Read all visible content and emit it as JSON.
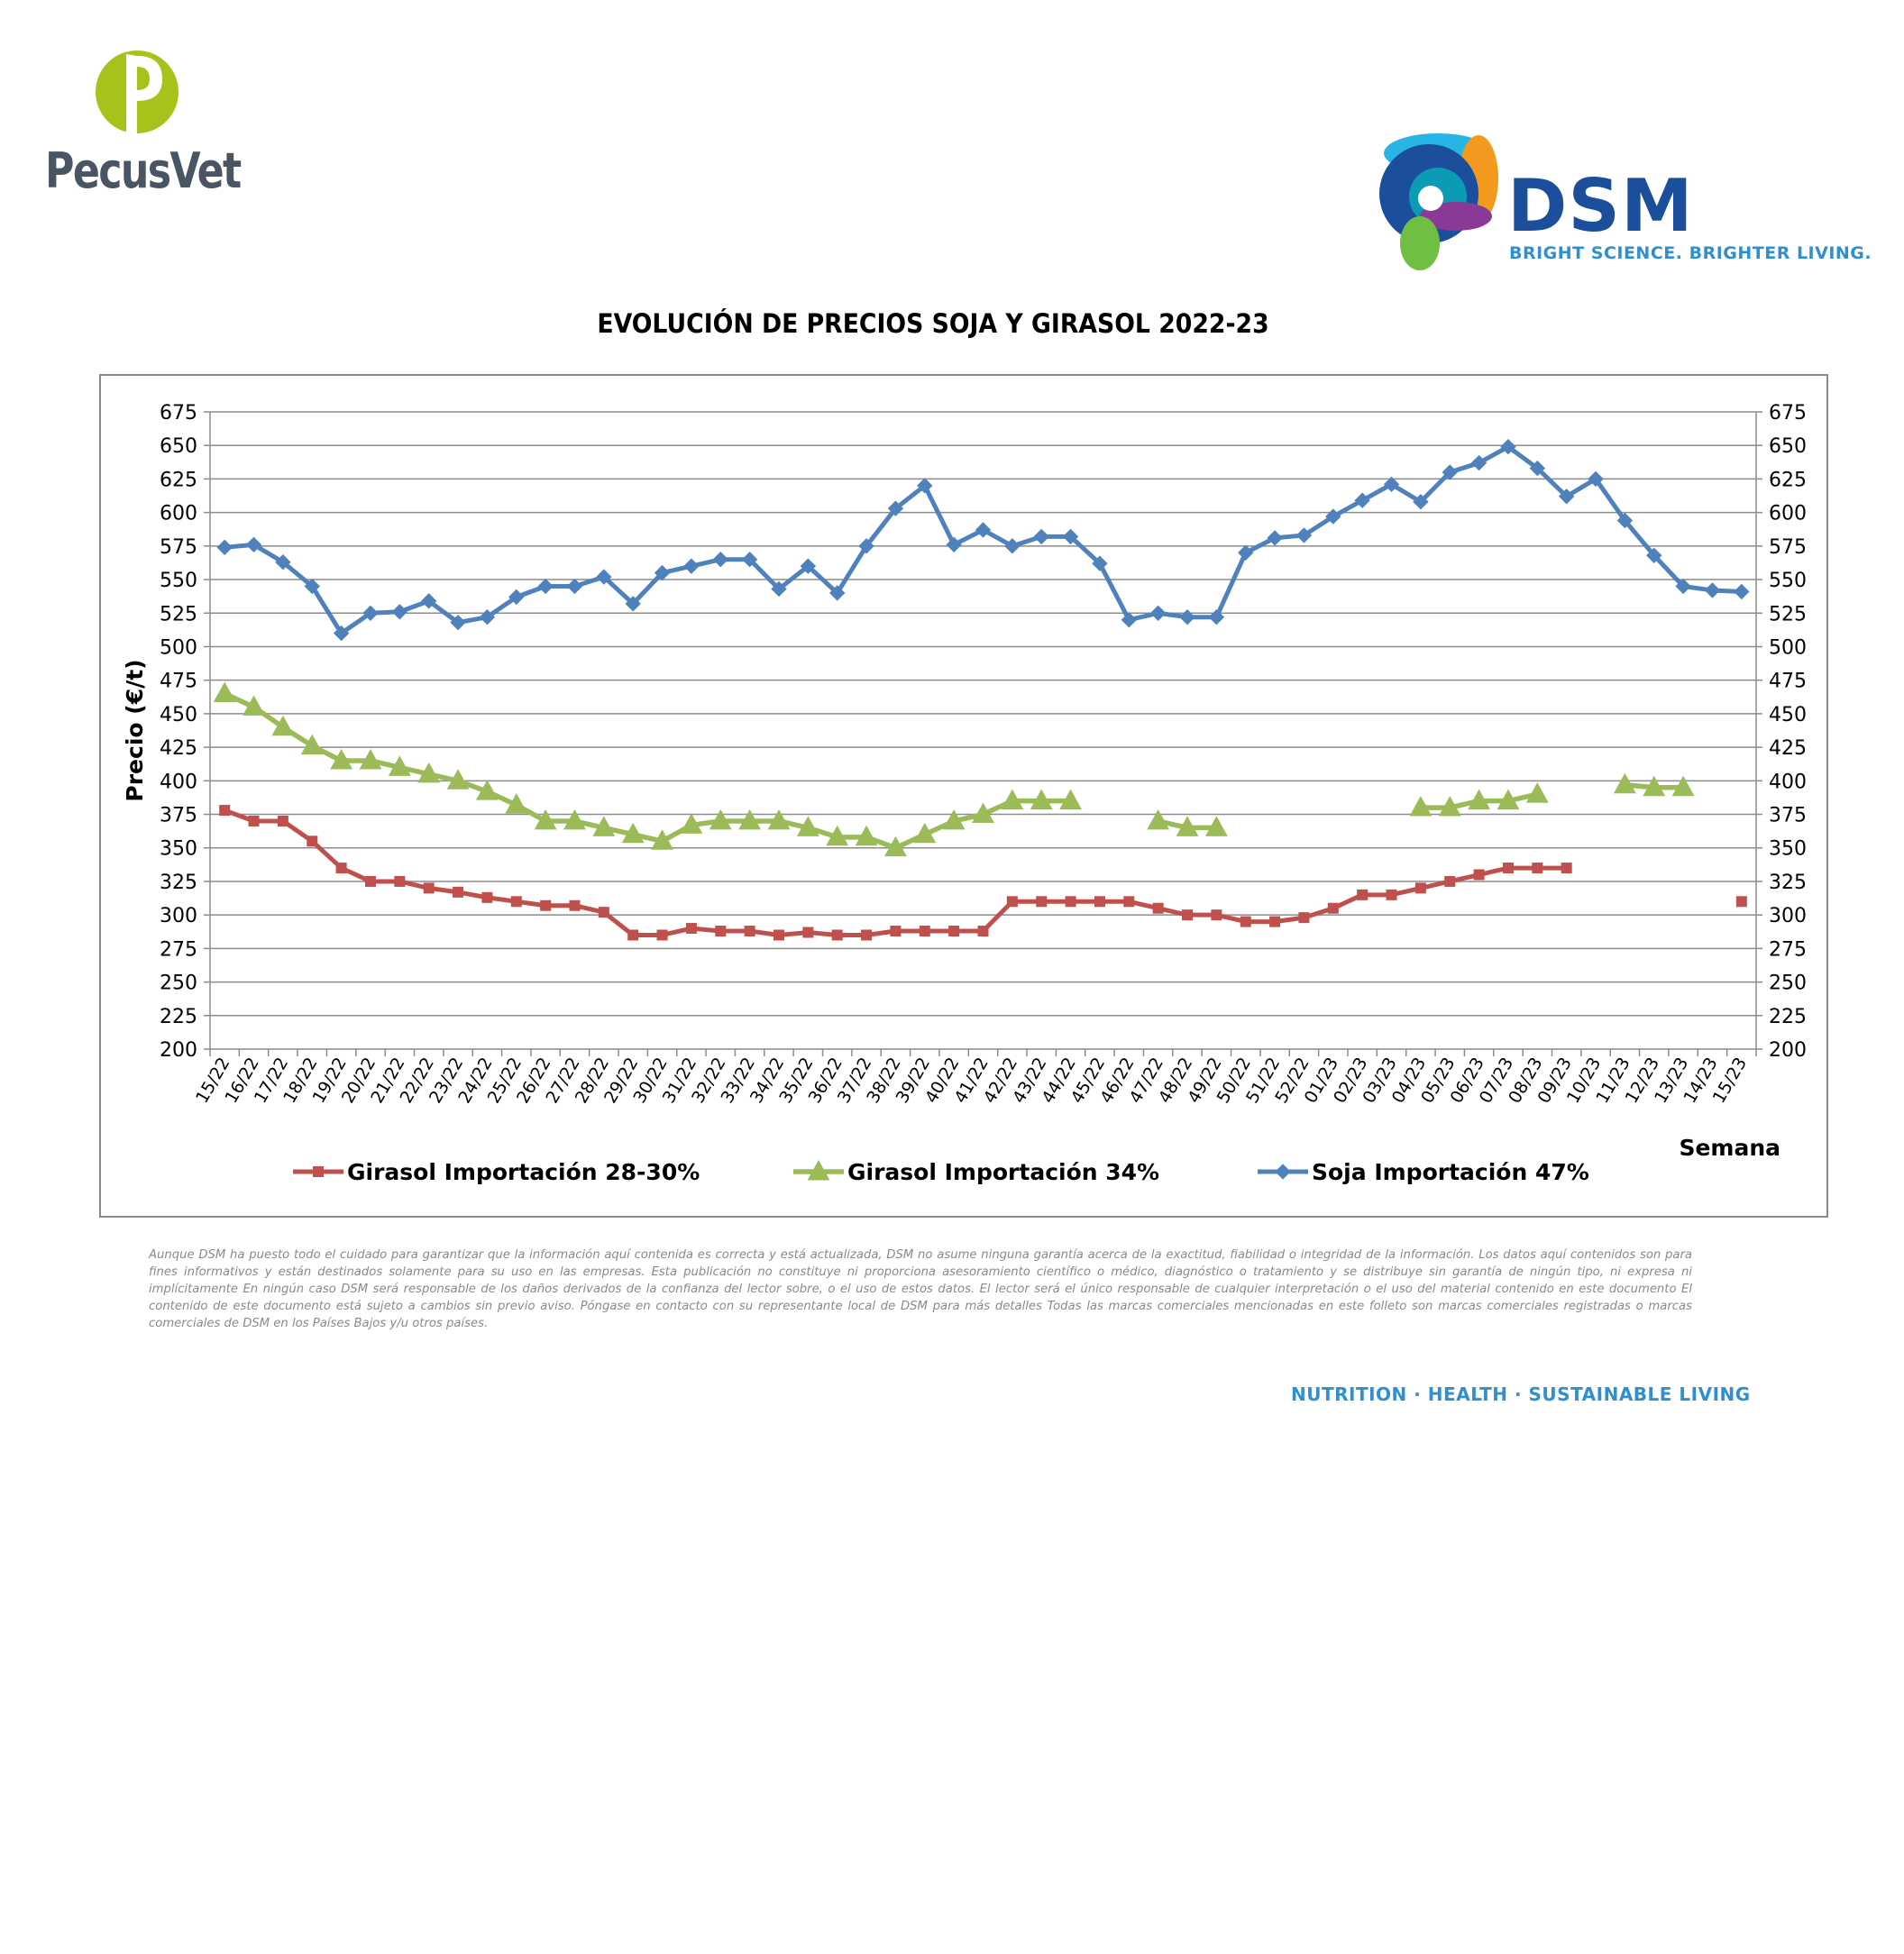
{
  "logos": {
    "pecusvet": "PecusVet",
    "dsm": "DSM",
    "dsm_tagline": "BRIGHT SCIENCE. BRIGHTER LIVING."
  },
  "colors": {
    "girasol_28": "#c0504d",
    "girasol_34": "#9bbb59",
    "soja_47": "#4f81bd",
    "grid": "#8c8c8c"
  },
  "chart_data": {
    "type": "line",
    "title": "EVOLUCIÓN DE PRECIOS SOJA Y GIRASOL 2022-23",
    "xlabel": "Semana",
    "ylabel": "Precio (€/t)",
    "ylim": [
      200,
      675
    ],
    "yticks": [
      200,
      225,
      250,
      275,
      300,
      325,
      350,
      375,
      400,
      425,
      450,
      475,
      500,
      525,
      550,
      575,
      600,
      625,
      650,
      675
    ],
    "y_axis_both_sides": true,
    "grid": true,
    "legend_position": "bottom",
    "categories": [
      "15/22",
      "16/22",
      "17/22",
      "18/22",
      "19/22",
      "20/22",
      "21/22",
      "22/22",
      "23/22",
      "24/22",
      "25/22",
      "26/22",
      "27/22",
      "28/22",
      "29/22",
      "30/22",
      "31/22",
      "32/22",
      "33/22",
      "34/22",
      "35/22",
      "36/22",
      "37/22",
      "38/22",
      "39/22",
      "40/22",
      "41/22",
      "42/22",
      "43/22",
      "44/22",
      "45/22",
      "46/22",
      "47/22",
      "48/22",
      "49/22",
      "50/22",
      "51/22",
      "52/22",
      "01/23",
      "02/23",
      "03/23",
      "04/23",
      "05/23",
      "06/23",
      "07/23",
      "08/23",
      "09/23",
      "10/23",
      "11/23",
      "12/23",
      "13/23",
      "14/23",
      "15/23"
    ],
    "series": [
      {
        "name": "Girasol Importación 28-30%",
        "color": "#c0504d",
        "marker": "square",
        "values": [
          378,
          370,
          370,
          355,
          335,
          325,
          325,
          320,
          317,
          313,
          310,
          307,
          307,
          302,
          285,
          285,
          290,
          288,
          288,
          285,
          287,
          285,
          285,
          288,
          288,
          288,
          288,
          310,
          310,
          310,
          310,
          310,
          305,
          300,
          300,
          295,
          295,
          298,
          305,
          315,
          315,
          320,
          325,
          330,
          335,
          335,
          335,
          null,
          null,
          null,
          null,
          null,
          310
        ]
      },
      {
        "name": "Girasol Importación 34%",
        "color": "#9bbb59",
        "marker": "triangle",
        "values": [
          465,
          455,
          440,
          426,
          415,
          415,
          410,
          405,
          400,
          392,
          382,
          370,
          370,
          365,
          360,
          355,
          367,
          370,
          370,
          370,
          365,
          358,
          358,
          350,
          360,
          370,
          375,
          385,
          385,
          385,
          null,
          null,
          370,
          365,
          365,
          null,
          null,
          null,
          null,
          null,
          null,
          380,
          380,
          385,
          385,
          390,
          null,
          null,
          397,
          395,
          395,
          null,
          null
        ]
      },
      {
        "name": "Soja Importación 47%",
        "color": "#4f81bd",
        "marker": "diamond",
        "values": [
          574,
          576,
          563,
          545,
          510,
          525,
          526,
          534,
          518,
          522,
          537,
          545,
          545,
          552,
          532,
          555,
          560,
          565,
          565,
          543,
          560,
          540,
          575,
          603,
          620,
          576,
          587,
          575,
          582,
          582,
          562,
          520,
          525,
          522,
          522,
          570,
          581,
          583,
          597,
          609,
          621,
          608,
          630,
          637,
          649,
          633,
          612,
          625,
          594,
          568,
          545,
          542,
          541
        ]
      }
    ]
  },
  "disclaimer": "Aunque DSM ha puesto todo el cuidado para garantizar que la información aquí contenida es correcta y está actualizada, DSM no asume ninguna garantía acerca de la exactitud, fiabilidad o integridad de la información. Los datos aquí contenidos son para fines informativos y están destinados solamente para su uso en las empresas. Esta publicación no constituye ni proporciona asesoramiento científico o médico, diagnóstico o tratamiento y se distribuye sin garantía de ningún tipo, ni expresa ni implícitamente En ningún caso DSM será responsable de los daños derivados de la confianza del lector sobre, o el uso de estos datos. El lector será el único responsable de cualquier interpretación o el uso del material contenido en este documento El contenido de este documento está sujeto a cambios sin previo aviso. Póngase en contacto con su representante local de DSM para más detalles Todas las marcas comerciales mencionadas en este folleto son marcas comerciales registradas o marcas comerciales de DSM en los Países Bajos y/u otros países.",
  "footer_tagline": "NUTRITION · HEALTH · SUSTAINABLE LIVING"
}
